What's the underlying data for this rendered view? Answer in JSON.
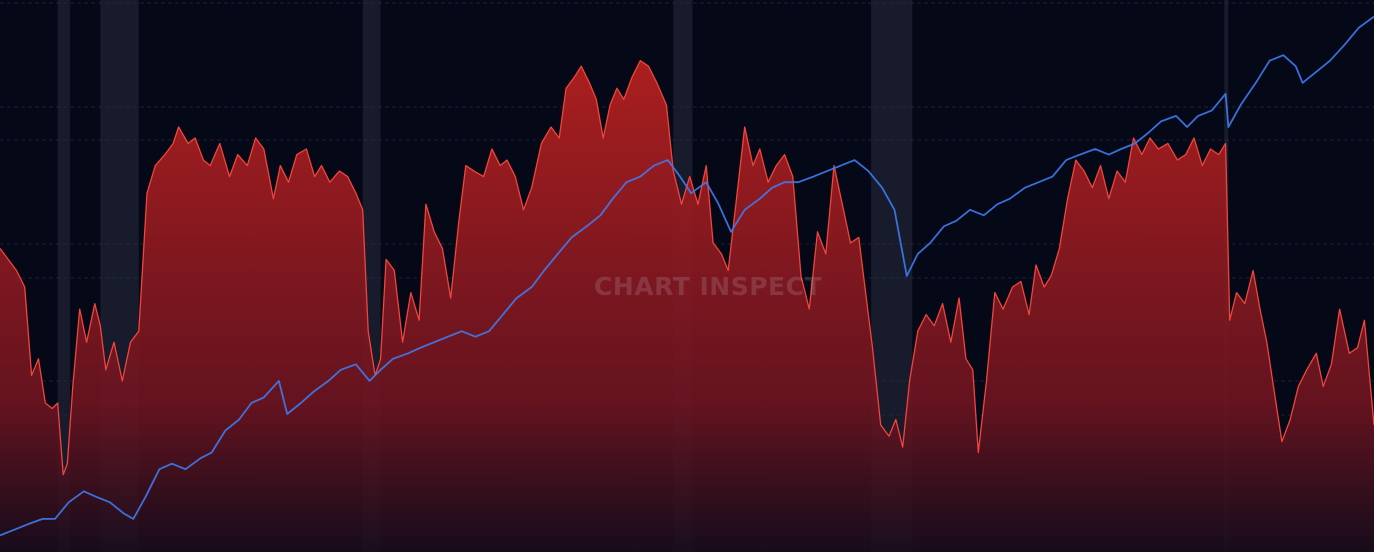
{
  "watermark": "CHART INSPECT",
  "colors": {
    "background": "#050816",
    "grid": "#2a3046",
    "recession_band": "#1e2233",
    "area_fill": "#b3201f",
    "area_line": "#f0453c",
    "index_line": "#3f7bf0"
  },
  "chart_data": {
    "type": "area",
    "x_range": [
      0,
      100
    ],
    "y_range": [
      0,
      100
    ],
    "grid": "horizontal-dashed",
    "recession_bands": [
      {
        "start": 4.2,
        "end": 5.1
      },
      {
        "start": 7.3,
        "end": 10.1
      },
      {
        "start": 26.4,
        "end": 27.7
      },
      {
        "start": 49.0,
        "end": 50.4
      },
      {
        "start": 63.4,
        "end": 66.4
      },
      {
        "start": 89.1,
        "end": 89.4
      }
    ],
    "series": [
      {
        "role": "area",
        "points": [
          [
            0,
            55
          ],
          [
            0.6,
            53
          ],
          [
            1.2,
            51
          ],
          [
            1.8,
            48
          ],
          [
            2.3,
            32
          ],
          [
            2.8,
            35
          ],
          [
            3.3,
            27
          ],
          [
            3.8,
            26
          ],
          [
            4.2,
            27
          ],
          [
            4.6,
            14
          ],
          [
            4.9,
            16
          ],
          [
            5.3,
            30
          ],
          [
            5.8,
            44
          ],
          [
            6.3,
            38
          ],
          [
            6.9,
            45
          ],
          [
            7.3,
            41
          ],
          [
            7.7,
            33
          ],
          [
            8.3,
            38
          ],
          [
            8.9,
            31
          ],
          [
            9.5,
            38
          ],
          [
            10.1,
            40
          ],
          [
            10.7,
            65
          ],
          [
            11.3,
            70
          ],
          [
            12.0,
            72
          ],
          [
            12.6,
            74
          ],
          [
            13.0,
            77
          ],
          [
            13.7,
            74
          ],
          [
            14.2,
            75
          ],
          [
            14.8,
            71
          ],
          [
            15.3,
            70
          ],
          [
            16.0,
            74
          ],
          [
            16.7,
            68
          ],
          [
            17.3,
            72
          ],
          [
            18.0,
            70
          ],
          [
            18.6,
            75
          ],
          [
            19.2,
            73
          ],
          [
            19.9,
            64
          ],
          [
            20.4,
            70
          ],
          [
            21.0,
            67
          ],
          [
            21.6,
            72
          ],
          [
            22.3,
            73
          ],
          [
            22.9,
            68
          ],
          [
            23.4,
            70
          ],
          [
            24.0,
            67
          ],
          [
            24.7,
            69
          ],
          [
            25.3,
            68
          ],
          [
            25.9,
            65
          ],
          [
            26.4,
            62
          ],
          [
            26.8,
            40
          ],
          [
            27.3,
            32
          ],
          [
            27.7,
            35
          ],
          [
            28.1,
            53
          ],
          [
            28.7,
            51
          ],
          [
            29.3,
            38
          ],
          [
            29.9,
            47
          ],
          [
            30.5,
            42
          ],
          [
            31.0,
            63
          ],
          [
            31.6,
            58
          ],
          [
            32.2,
            55
          ],
          [
            32.8,
            46
          ],
          [
            33.4,
            60
          ],
          [
            33.9,
            70
          ],
          [
            34.5,
            69
          ],
          [
            35.2,
            68
          ],
          [
            35.8,
            73
          ],
          [
            36.4,
            70
          ],
          [
            36.9,
            71
          ],
          [
            37.5,
            68
          ],
          [
            38.1,
            62
          ],
          [
            38.7,
            66
          ],
          [
            39.4,
            74
          ],
          [
            40.1,
            77
          ],
          [
            40.7,
            75
          ],
          [
            41.2,
            84
          ],
          [
            41.8,
            86
          ],
          [
            42.3,
            88
          ],
          [
            42.9,
            85
          ],
          [
            43.4,
            82
          ],
          [
            43.9,
            75
          ],
          [
            44.4,
            81
          ],
          [
            44.9,
            84
          ],
          [
            45.4,
            82
          ],
          [
            46.0,
            86
          ],
          [
            46.6,
            89
          ],
          [
            47.2,
            88
          ],
          [
            47.8,
            85
          ],
          [
            48.5,
            81
          ],
          [
            49.0,
            69
          ],
          [
            49.6,
            63
          ],
          [
            50.2,
            68
          ],
          [
            50.8,
            63
          ],
          [
            51.4,
            70
          ],
          [
            51.9,
            56
          ],
          [
            52.5,
            54
          ],
          [
            53.0,
            51
          ],
          [
            53.6,
            64
          ],
          [
            54.2,
            77
          ],
          [
            54.8,
            70
          ],
          [
            55.3,
            73
          ],
          [
            55.9,
            67
          ],
          [
            56.5,
            70
          ],
          [
            57.1,
            72
          ],
          [
            57.7,
            68
          ],
          [
            58.3,
            50
          ],
          [
            58.9,
            44
          ],
          [
            59.5,
            58
          ],
          [
            60.1,
            54
          ],
          [
            60.7,
            70
          ],
          [
            61.3,
            63
          ],
          [
            61.9,
            56
          ],
          [
            62.5,
            57
          ],
          [
            63.0,
            47
          ],
          [
            63.5,
            37
          ],
          [
            64.1,
            23
          ],
          [
            64.7,
            21
          ],
          [
            65.2,
            24
          ],
          [
            65.7,
            19
          ],
          [
            66.2,
            31
          ],
          [
            66.8,
            40
          ],
          [
            67.4,
            43
          ],
          [
            68.0,
            41
          ],
          [
            68.6,
            45
          ],
          [
            69.2,
            38
          ],
          [
            69.8,
            46
          ],
          [
            70.3,
            35
          ],
          [
            70.8,
            33
          ],
          [
            71.2,
            18
          ],
          [
            71.8,
            31
          ],
          [
            72.4,
            47
          ],
          [
            73.0,
            44
          ],
          [
            73.7,
            48
          ],
          [
            74.3,
            49
          ],
          [
            74.9,
            43
          ],
          [
            75.4,
            52
          ],
          [
            76.0,
            48
          ],
          [
            76.5,
            50
          ],
          [
            77.1,
            55
          ],
          [
            77.7,
            64
          ],
          [
            78.3,
            71
          ],
          [
            78.9,
            69
          ],
          [
            79.5,
            66
          ],
          [
            80.1,
            70
          ],
          [
            80.7,
            64
          ],
          [
            81.3,
            69
          ],
          [
            81.9,
            67
          ],
          [
            82.5,
            75
          ],
          [
            83.1,
            72
          ],
          [
            83.7,
            75
          ],
          [
            84.3,
            73
          ],
          [
            85.0,
            74
          ],
          [
            85.7,
            71
          ],
          [
            86.3,
            72
          ],
          [
            86.9,
            75
          ],
          [
            87.5,
            70
          ],
          [
            88.1,
            73
          ],
          [
            88.7,
            72
          ],
          [
            89.2,
            74
          ],
          [
            89.5,
            42
          ],
          [
            90.0,
            47
          ],
          [
            90.6,
            45
          ],
          [
            91.2,
            51
          ],
          [
            91.7,
            44
          ],
          [
            92.2,
            38
          ],
          [
            92.8,
            28
          ],
          [
            93.3,
            20
          ],
          [
            93.9,
            24
          ],
          [
            94.5,
            30
          ],
          [
            95.1,
            33
          ],
          [
            95.8,
            36
          ],
          [
            96.3,
            30
          ],
          [
            96.9,
            34
          ],
          [
            97.5,
            44
          ],
          [
            98.2,
            36
          ],
          [
            98.8,
            37
          ],
          [
            99.3,
            42
          ],
          [
            100,
            23
          ]
        ]
      },
      {
        "role": "line",
        "points": [
          [
            0,
            3
          ],
          [
            1.0,
            4
          ],
          [
            2.0,
            5
          ],
          [
            3.1,
            6
          ],
          [
            4.0,
            6
          ],
          [
            5.0,
            9
          ],
          [
            6.1,
            11
          ],
          [
            7.0,
            10
          ],
          [
            8.0,
            9
          ],
          [
            9.0,
            7
          ],
          [
            9.7,
            6
          ],
          [
            10.6,
            10
          ],
          [
            11.6,
            15
          ],
          [
            12.5,
            16
          ],
          [
            13.5,
            15
          ],
          [
            14.6,
            17
          ],
          [
            15.4,
            18
          ],
          [
            16.4,
            22
          ],
          [
            17.4,
            24
          ],
          [
            18.3,
            27
          ],
          [
            19.2,
            28
          ],
          [
            20.3,
            31
          ],
          [
            20.9,
            25
          ],
          [
            21.9,
            27
          ],
          [
            22.8,
            29
          ],
          [
            23.9,
            31
          ],
          [
            24.8,
            33
          ],
          [
            25.9,
            34
          ],
          [
            26.9,
            31
          ],
          [
            27.7,
            33
          ],
          [
            28.6,
            35
          ],
          [
            29.7,
            36
          ],
          [
            30.6,
            37
          ],
          [
            31.6,
            38
          ],
          [
            32.6,
            39
          ],
          [
            33.6,
            40
          ],
          [
            34.6,
            39
          ],
          [
            35.6,
            40
          ],
          [
            36.6,
            43
          ],
          [
            37.6,
            46
          ],
          [
            38.7,
            48
          ],
          [
            39.6,
            51
          ],
          [
            40.6,
            54
          ],
          [
            41.6,
            57
          ],
          [
            42.7,
            59
          ],
          [
            43.7,
            61
          ],
          [
            44.6,
            64
          ],
          [
            45.6,
            67
          ],
          [
            46.6,
            68
          ],
          [
            47.6,
            70
          ],
          [
            48.6,
            71
          ],
          [
            49.5,
            68
          ],
          [
            50.3,
            65
          ],
          [
            51.4,
            67
          ],
          [
            52.3,
            63
          ],
          [
            53.2,
            58
          ],
          [
            54.2,
            62
          ],
          [
            55.3,
            64
          ],
          [
            56.2,
            66
          ],
          [
            57.1,
            67
          ],
          [
            58.1,
            67
          ],
          [
            59.2,
            68
          ],
          [
            60.2,
            69
          ],
          [
            61.2,
            70
          ],
          [
            62.2,
            71
          ],
          [
            63.2,
            69
          ],
          [
            64.2,
            66
          ],
          [
            65.1,
            62
          ],
          [
            66.0,
            50
          ],
          [
            66.8,
            54
          ],
          [
            67.7,
            56
          ],
          [
            68.7,
            59
          ],
          [
            69.6,
            60
          ],
          [
            70.6,
            62
          ],
          [
            71.6,
            61
          ],
          [
            72.6,
            63
          ],
          [
            73.5,
            64
          ],
          [
            74.6,
            66
          ],
          [
            75.6,
            67
          ],
          [
            76.6,
            68
          ],
          [
            77.6,
            71
          ],
          [
            78.6,
            72
          ],
          [
            79.7,
            73
          ],
          [
            80.7,
            72
          ],
          [
            81.6,
            73
          ],
          [
            82.6,
            74
          ],
          [
            83.6,
            76
          ],
          [
            84.5,
            78
          ],
          [
            85.6,
            79
          ],
          [
            86.4,
            77
          ],
          [
            87.2,
            79
          ],
          [
            88.2,
            80
          ],
          [
            89.2,
            83
          ],
          [
            89.4,
            77
          ],
          [
            90.3,
            81
          ],
          [
            91.4,
            85
          ],
          [
            92.4,
            89
          ],
          [
            93.4,
            90
          ],
          [
            94.3,
            88
          ],
          [
            94.8,
            85
          ],
          [
            95.8,
            87
          ],
          [
            96.8,
            89
          ],
          [
            97.9,
            92
          ],
          [
            98.9,
            95
          ],
          [
            100,
            97
          ]
        ]
      }
    ]
  }
}
